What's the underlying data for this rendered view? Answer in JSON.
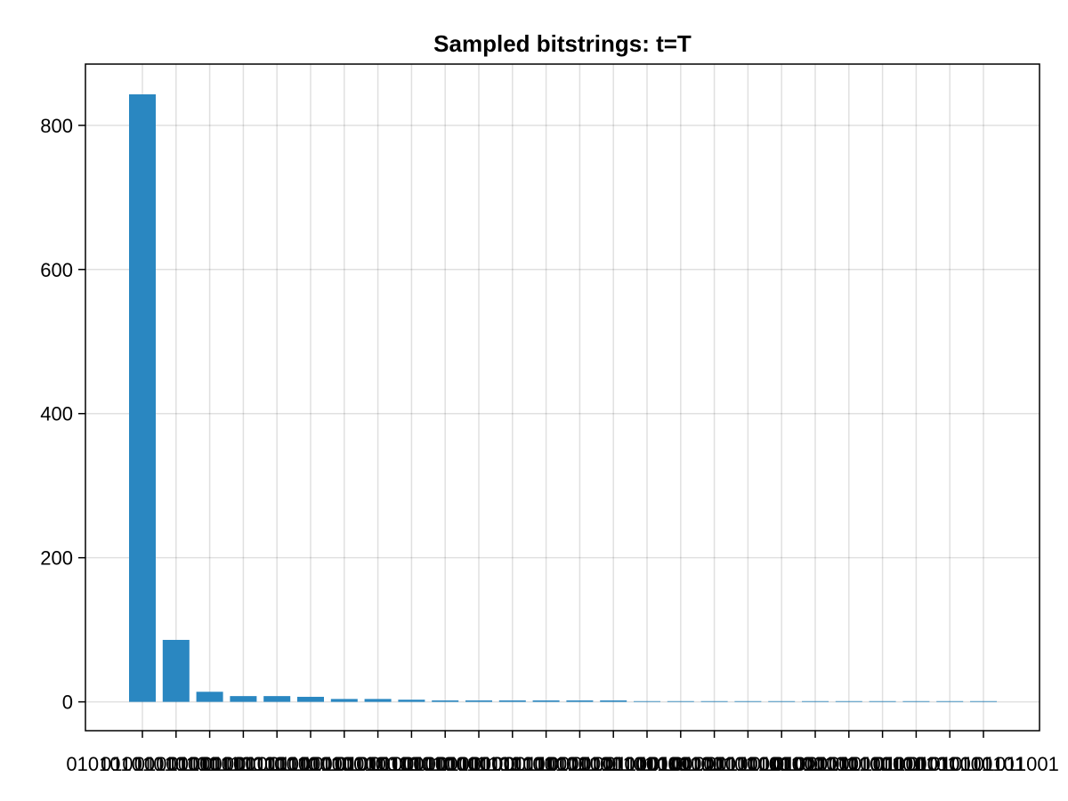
{
  "chart_data": {
    "type": "bar",
    "title": "Sampled bitstrings: t=T",
    "xlabel": "",
    "ylabel": "",
    "categories": [
      "01010101010101",
      "01010101010110",
      "01010101011010",
      "01010101101010",
      "01010110101010",
      "01011010101010",
      "01101010101010",
      "10101010101010",
      "01010101010011",
      "01010101001101",
      "01010100110101",
      "01010011010101",
      "01001101010101",
      "00110101010101",
      "10010101010101",
      "01011001010101",
      "01100101010101",
      "10100101010101",
      "01010110010101",
      "01101001010101",
      "10101001010101",
      "01010101100101",
      "01011010010101",
      "10101010010101",
      "01101010010101",
      "01010101011001"
    ],
    "values": [
      843,
      86,
      14,
      8,
      8,
      7,
      4,
      4,
      3,
      2,
      2,
      2,
      2,
      2,
      2,
      1,
      1,
      1,
      1,
      1,
      1,
      1,
      1,
      1,
      1,
      1
    ],
    "ylim": [
      -40,
      885
    ],
    "yticks": [
      0,
      200,
      400,
      600,
      800
    ],
    "grid": true,
    "bar_color": "#2a87c1"
  }
}
